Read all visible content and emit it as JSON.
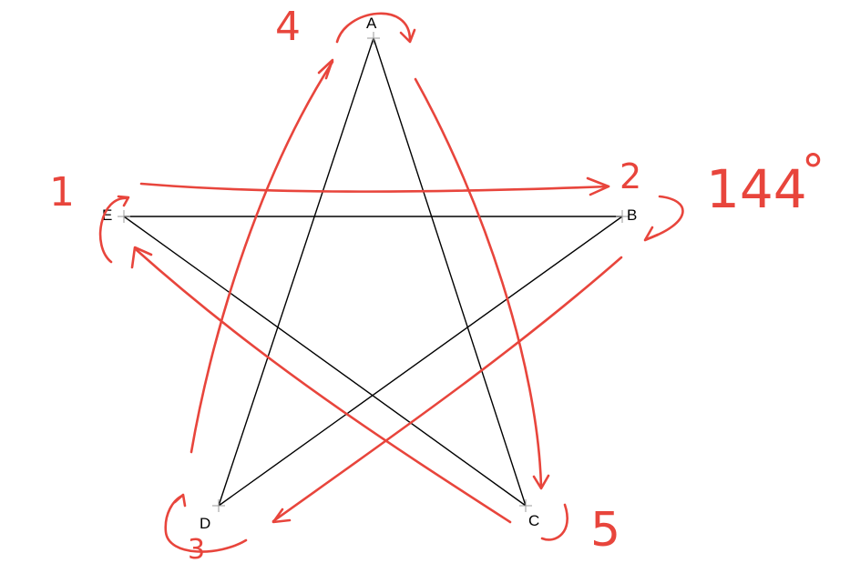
{
  "diagram": {
    "vertices": [
      "A",
      "B",
      "C",
      "D",
      "E"
    ],
    "star_edges": [
      [
        "A",
        "C"
      ],
      [
        "A",
        "D"
      ],
      [
        "E",
        "B"
      ],
      [
        "E",
        "C"
      ],
      [
        "B",
        "D"
      ]
    ],
    "annotations": {
      "step_1": "1",
      "step_2": "2",
      "step_3": "3",
      "step_4": "4",
      "step_5": "5",
      "angle_value": "144",
      "angle_unit": "°"
    },
    "colors": {
      "lines": "#000000",
      "annotations": "#e8453c"
    }
  }
}
